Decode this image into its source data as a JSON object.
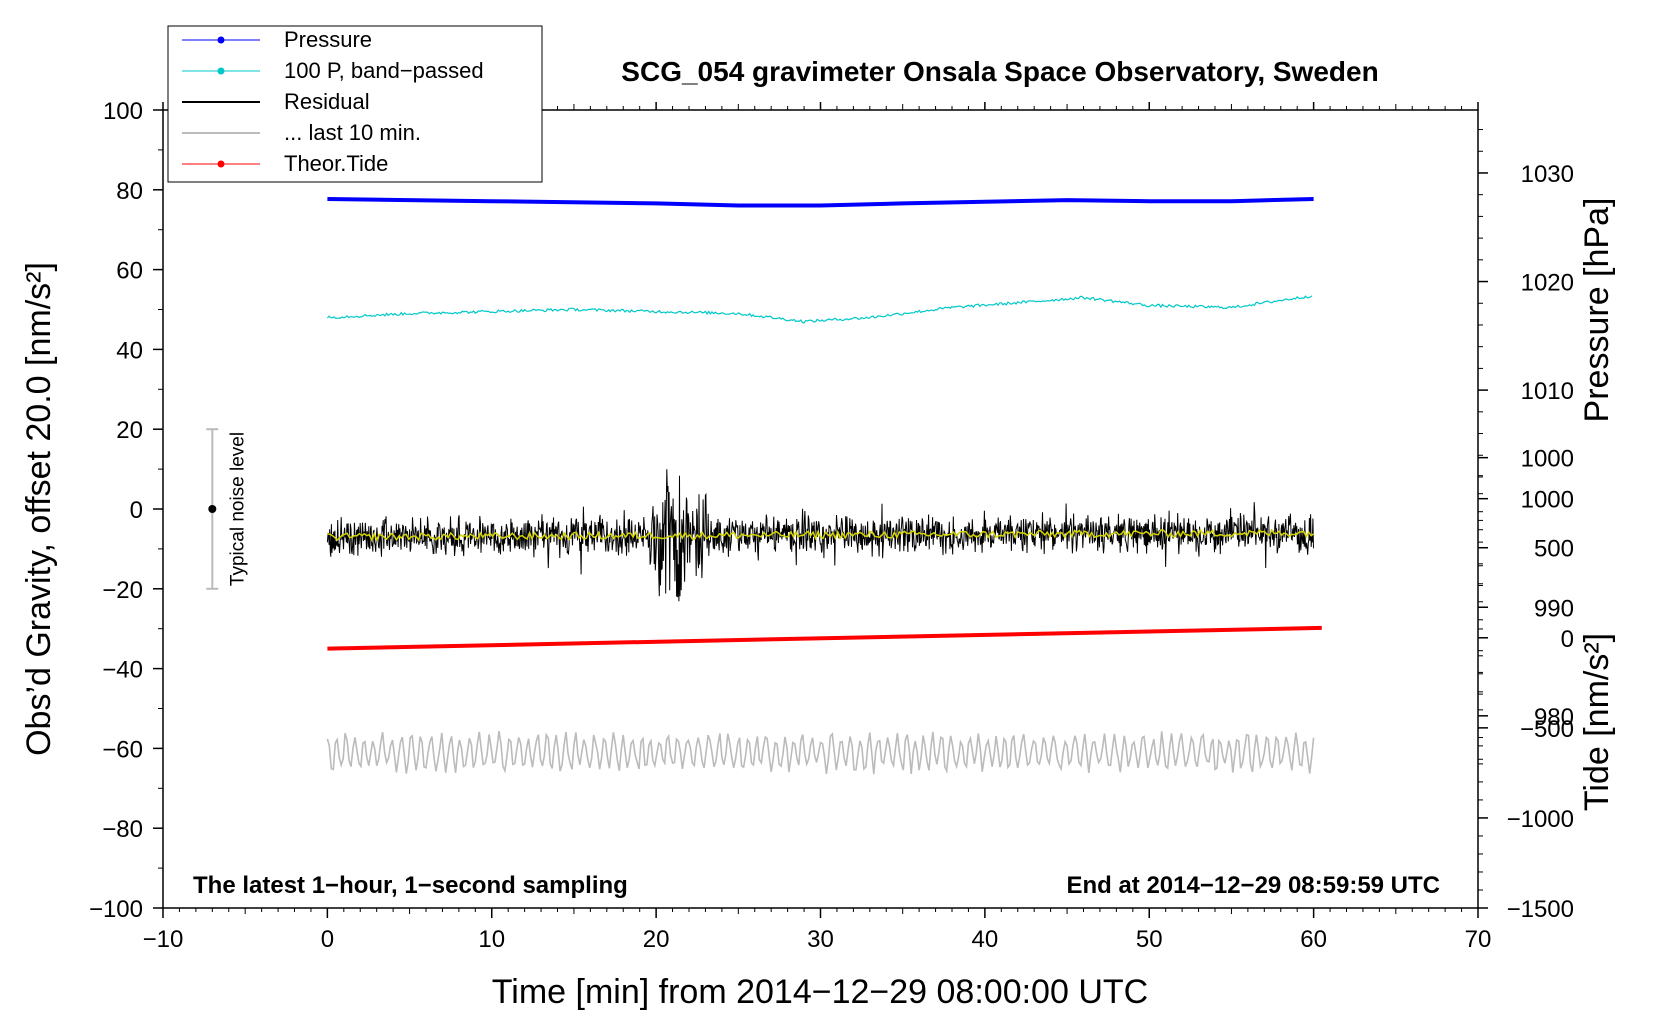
{
  "chart_data": {
    "type": "line",
    "title": "SCG_054 gravimeter Onsala Space Observatory, Sweden",
    "xlabel": "Time [min] from 2014−12−29 08:00:00 UTC",
    "ylabel_left": "Obs’d Gravity, offset 20.0 [nm/s²]",
    "ylabel_right_pressure": "Pressure [hPa]",
    "ylabel_right_tide": "Tide [nm/s²]",
    "xlim": [
      -10,
      70
    ],
    "ylim": [
      -100,
      100
    ],
    "x_ticks": [
      "−10",
      "0",
      "10",
      "20",
      "30",
      "40",
      "50",
      "60",
      "70"
    ],
    "x_tick_values": [
      -10,
      0,
      10,
      20,
      30,
      40,
      50,
      60,
      70
    ],
    "y_ticks": [
      "−100",
      "−80",
      "−60",
      "−40",
      "−20",
      "0",
      "20",
      "40",
      "60",
      "80",
      "100"
    ],
    "y_tick_values": [
      -100,
      -80,
      -60,
      -40,
      -20,
      0,
      20,
      40,
      60,
      80,
      100
    ],
    "pressure_axis": {
      "ticks": [
        "980",
        "990",
        "1000",
        "1010",
        "1020",
        "1030"
      ],
      "tick_values": [
        980,
        990,
        1000,
        1010,
        1020,
        1030
      ],
      "range": [
        962.3,
        1035.8
      ]
    },
    "tide_axis": {
      "ticks": [
        "−1500",
        "−1000",
        "−500",
        "0",
        "500",
        "1000"
      ],
      "tick_values": [
        -1500,
        -1000,
        -500,
        0,
        500,
        1000
      ],
      "range": [
        -1500,
        2930
      ]
    },
    "notes": {
      "left": "The latest 1−hour, 1−second sampling",
      "right": "End at 2014−12−29 08:59:59 UTC"
    },
    "noise_bar": {
      "label": "Typical noise level",
      "x": -7,
      "center": 0,
      "half_range": 20
    },
    "legend": {
      "position": "top-left",
      "entries": [
        {
          "label": "Pressure",
          "color": "#0000ff",
          "marker": true
        },
        {
          "label": "100 P, band−passed",
          "color": "#00c8c8",
          "marker": true
        },
        {
          "label": "Residual",
          "color": "#000000",
          "marker": false
        },
        {
          "label": "... last 10 min.",
          "color": "#bbbbbb",
          "marker": false
        },
        {
          "label": "Theor.Tide",
          "color": "#ff0000",
          "marker": true
        }
      ]
    },
    "series": [
      {
        "name": "Pressure",
        "axis": "pressure",
        "color": "#0000ff",
        "x": [
          0,
          10,
          20,
          25,
          30,
          35,
          45,
          50,
          55,
          60
        ],
        "y": [
          1027.6,
          1027.4,
          1027.2,
          1027.0,
          1027.0,
          1027.2,
          1027.5,
          1027.4,
          1027.4,
          1027.6
        ]
      },
      {
        "name": "100 P, band−passed",
        "axis": "left",
        "color": "#00c8c8",
        "x": [
          0,
          5,
          10,
          15,
          20,
          25,
          29,
          33,
          38,
          43,
          46,
          50,
          55,
          60
        ],
        "y": [
          48,
          49,
          49.5,
          50,
          49.5,
          49,
          47,
          48,
          50.5,
          52,
          53,
          51,
          50.5,
          53.5
        ]
      },
      {
        "name": "Residual",
        "axis": "left",
        "color": "#000000",
        "x": [
          0,
          60
        ],
        "y": [
          -7,
          -6
        ]
      },
      {
        "name": "... last 10 min.",
        "axis": "left",
        "color": "#bbbbbb",
        "x": [
          0,
          60
        ],
        "y": [
          -61,
          -61
        ]
      },
      {
        "name": "Theor.Tide",
        "axis": "tide",
        "color": "#ff0000",
        "x": [
          0,
          60.5
        ],
        "y": [
          -60,
          55
        ]
      }
    ],
    "residual_burst": {
      "start": 19.5,
      "end": 23.5,
      "amplitude": 16,
      "center_x": 21
    }
  }
}
